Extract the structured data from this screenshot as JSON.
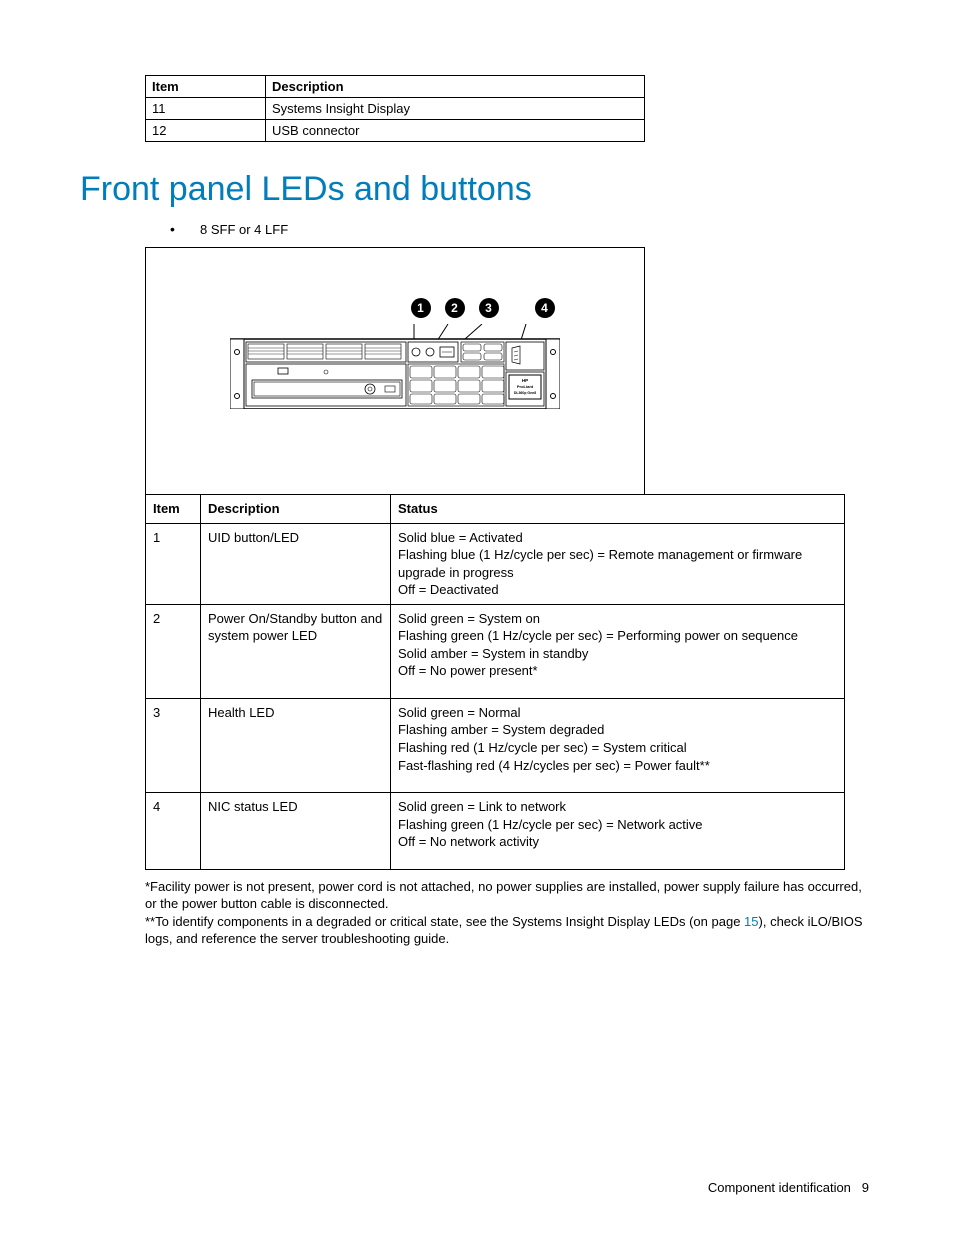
{
  "colors": {
    "heading": "#007dba",
    "link": "#007dba",
    "text": "#000000",
    "border": "#000000",
    "background": "#ffffff"
  },
  "topTable": {
    "headers": {
      "item": "Item",
      "description": "Description"
    },
    "rows": [
      {
        "item": "11",
        "description": "Systems Insight Display"
      },
      {
        "item": "12",
        "description": "USB connector"
      }
    ]
  },
  "heading": "Front panel LEDs and buttons",
  "bullet": "8 SFF or 4 LFF",
  "diagram": {
    "callouts": [
      "1",
      "2",
      "3",
      "4"
    ],
    "productLabel": {
      "line1": "HP",
      "line2": "ProLiant",
      "line3": "DL360p Gen8"
    }
  },
  "ledTable": {
    "headers": {
      "item": "Item",
      "description": "Description",
      "status": "Status"
    },
    "rows": [
      {
        "item": "1",
        "description": "UID button/LED",
        "status": "Solid blue = Activated\nFlashing blue (1 Hz/cycle per sec) = Remote management or firmware upgrade in progress\nOff = Deactivated"
      },
      {
        "item": "2",
        "description": "Power On/Standby button and system power LED",
        "status": "Solid green = System on\nFlashing green (1 Hz/cycle per sec) = Performing power on sequence\nSolid amber = System in standby\nOff = No power present*"
      },
      {
        "item": "3",
        "description": "Health LED",
        "status": "Solid green = Normal\nFlashing amber = System degraded\nFlashing red (1 Hz/cycle per sec) = System critical\nFast-flashing red (4 Hz/cycles per sec) = Power fault**"
      },
      {
        "item": "4",
        "description": "NIC status LED",
        "status": "Solid green = Link to network\nFlashing green (1 Hz/cycle per sec) = Network active\nOff = No network activity"
      }
    ]
  },
  "footnotes": {
    "note1": "*Facility power is not present, power cord is not attached, no power supplies are installed, power supply failure has occurred, or the power button cable is disconnected.",
    "note2a": "**To identify components in a degraded or critical state, see the Systems Insight Display LEDs (on page ",
    "note2link": "15",
    "note2b": "), check iLO/BIOS logs, and reference the server troubleshooting guide."
  },
  "footer": {
    "section": "Component identification",
    "page": "9"
  }
}
